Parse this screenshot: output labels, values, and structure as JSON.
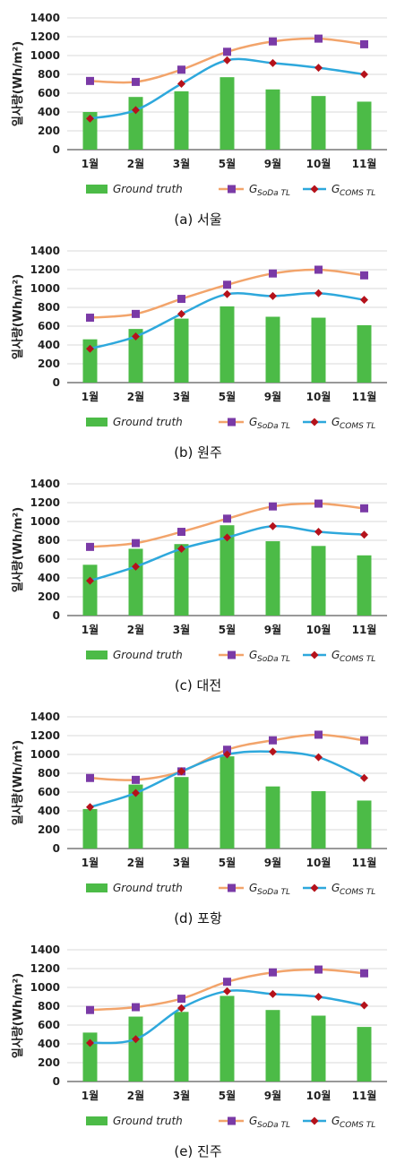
{
  "legend": {
    "ground": "Ground truth",
    "soda_main": "G",
    "soda_sub": "SoDa TL",
    "coms_main": "G",
    "coms_sub": "COMS TL"
  },
  "colors": {
    "bar": "#4cbb47",
    "soda_line": "#f2a46b",
    "soda_marker": "#7a3aa6",
    "coms_line": "#2ea8dc",
    "coms_marker": "#b5121b",
    "grid": "#d9d9d9",
    "axis": "#333333"
  },
  "chart_data": [
    {
      "type": "bar",
      "caption": "(a) 서울",
      "ylabel": "일사량(Wh/m²)",
      "ylim": [
        0,
        1400
      ],
      "yticks": [
        0,
        200,
        400,
        600,
        800,
        1000,
        1200,
        1400
      ],
      "categories": [
        "1월",
        "2월",
        "3월",
        "5월",
        "9월",
        "10월",
        "11월"
      ],
      "series": [
        {
          "name": "Ground truth",
          "type": "bar",
          "values": [
            400,
            560,
            620,
            770,
            640,
            570,
            510
          ]
        },
        {
          "name": "G SoDa TL",
          "type": "line",
          "values": [
            730,
            720,
            850,
            1040,
            1150,
            1180,
            1120
          ]
        },
        {
          "name": "G COMS TL",
          "type": "line",
          "values": [
            330,
            420,
            700,
            950,
            920,
            870,
            800
          ]
        }
      ]
    },
    {
      "type": "bar",
      "caption": "(b) 원주",
      "ylabel": "일사량(Wh/m²)",
      "ylim": [
        0,
        1400
      ],
      "yticks": [
        0,
        200,
        400,
        600,
        800,
        1000,
        1200,
        1400
      ],
      "categories": [
        "1월",
        "2월",
        "3월",
        "5월",
        "9월",
        "10월",
        "11월"
      ],
      "series": [
        {
          "name": "Ground truth",
          "type": "bar",
          "values": [
            460,
            570,
            680,
            810,
            700,
            690,
            610
          ]
        },
        {
          "name": "G SoDa TL",
          "type": "line",
          "values": [
            690,
            730,
            890,
            1040,
            1160,
            1200,
            1140
          ]
        },
        {
          "name": "G COMS TL",
          "type": "line",
          "values": [
            360,
            490,
            730,
            940,
            920,
            950,
            880
          ]
        }
      ]
    },
    {
      "type": "bar",
      "caption": "(c) 대전",
      "ylabel": "일사량(Wh/m²)",
      "ylim": [
        0,
        1400
      ],
      "yticks": [
        0,
        200,
        400,
        600,
        800,
        1000,
        1200,
        1400
      ],
      "categories": [
        "1월",
        "2월",
        "3월",
        "5월",
        "9월",
        "10월",
        "11월"
      ],
      "series": [
        {
          "name": "Ground truth",
          "type": "bar",
          "values": [
            540,
            710,
            760,
            960,
            790,
            740,
            640
          ]
        },
        {
          "name": "G SoDa TL",
          "type": "line",
          "values": [
            730,
            770,
            890,
            1030,
            1160,
            1190,
            1140
          ]
        },
        {
          "name": "G COMS TL",
          "type": "line",
          "values": [
            370,
            520,
            710,
            830,
            950,
            890,
            860
          ]
        }
      ]
    },
    {
      "type": "bar",
      "caption": "(d) 포항",
      "ylabel": "일사량(Wh/m²)",
      "ylim": [
        0,
        1400
      ],
      "yticks": [
        0,
        200,
        400,
        600,
        800,
        1000,
        1200,
        1400
      ],
      "categories": [
        "1월",
        "2월",
        "3월",
        "5월",
        "9월",
        "10월",
        "11월"
      ],
      "series": [
        {
          "name": "Ground truth",
          "type": "bar",
          "values": [
            420,
            680,
            760,
            980,
            660,
            610,
            510
          ]
        },
        {
          "name": "G SoDa TL",
          "type": "line",
          "values": [
            750,
            730,
            820,
            1050,
            1150,
            1210,
            1150
          ]
        },
        {
          "name": "G COMS TL",
          "type": "line",
          "values": [
            440,
            590,
            820,
            1000,
            1030,
            970,
            750
          ]
        }
      ]
    },
    {
      "type": "bar",
      "caption": "(e) 진주",
      "ylabel": "일사량(Wh/m²)",
      "ylim": [
        0,
        1400
      ],
      "yticks": [
        0,
        200,
        400,
        600,
        800,
        1000,
        1200,
        1400
      ],
      "categories": [
        "1월",
        "2월",
        "3월",
        "5월",
        "9월",
        "10월",
        "11월"
      ],
      "series": [
        {
          "name": "Ground truth",
          "type": "bar",
          "values": [
            520,
            690,
            740,
            910,
            760,
            700,
            580
          ]
        },
        {
          "name": "G SoDa TL",
          "type": "line",
          "values": [
            760,
            790,
            880,
            1060,
            1160,
            1190,
            1150
          ]
        },
        {
          "name": "G COMS TL",
          "type": "line",
          "values": [
            410,
            450,
            780,
            960,
            930,
            900,
            810
          ]
        }
      ]
    }
  ]
}
